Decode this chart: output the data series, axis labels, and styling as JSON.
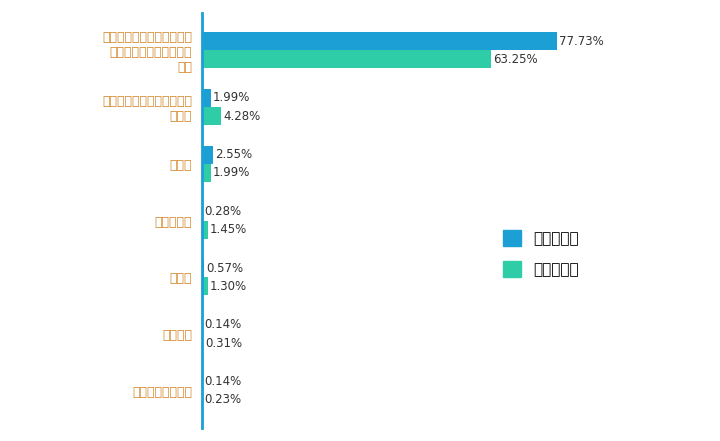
{
  "categories": [
    "生物技术和新医药",
    "节能环保",
    "新材料",
    "新能源汽车",
    "新能源",
    "高端装备制造（含海洋工程\n装备）",
    "新一代信息技术和软件（含\n物联网和云计算、智能电\n网）"
  ],
  "grad_values": [
    0.14,
    0.14,
    0.57,
    0.28,
    2.55,
    1.99,
    77.73
  ],
  "undergrad_values": [
    0.23,
    0.31,
    1.3,
    1.45,
    1.99,
    4.28,
    63.25
  ],
  "grad_color": "#1B9FD4",
  "undergrad_color": "#2ECDA7",
  "grad_label": "毕业研究生",
  "undergrad_label": "本科毕业生",
  "label_color": "#D4872A",
  "xlim": [
    0,
    85
  ],
  "bar_height": 0.32,
  "tick_fontsize": 9,
  "legend_fontsize": 11,
  "value_fontsize": 8.5
}
